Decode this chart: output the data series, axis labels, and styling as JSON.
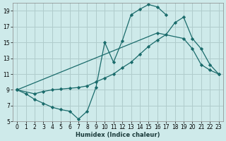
{
  "xlabel": "Humidex (Indice chaleur)",
  "background_color": "#ceeaea",
  "grid_color": "#b0cccc",
  "line_color": "#1a6b6b",
  "xlim": [
    -0.5,
    23.5
  ],
  "ylim": [
    5,
    20
  ],
  "yticks": [
    5,
    7,
    9,
    11,
    13,
    15,
    17,
    19
  ],
  "xticks": [
    0,
    1,
    2,
    3,
    4,
    5,
    6,
    7,
    8,
    9,
    10,
    11,
    12,
    13,
    14,
    15,
    16,
    17,
    18,
    19,
    20,
    21,
    22,
    23
  ],
  "line1_x": [
    0,
    1,
    2,
    3,
    4,
    5,
    6,
    7,
    8,
    9,
    10,
    11,
    12,
    13,
    14,
    15,
    16,
    17
  ],
  "line1_y": [
    9,
    8.5,
    7.8,
    7.3,
    6.8,
    6.5,
    6.3,
    5.3,
    6.3,
    9.3,
    15.0,
    12.5,
    15.2,
    18.5,
    19.2,
    19.8,
    19.5,
    18.5
  ],
  "line2_x": [
    0,
    2,
    3,
    4,
    5,
    6,
    7,
    8,
    9,
    10,
    11,
    12,
    13,
    14,
    15,
    16,
    17,
    18,
    19,
    20,
    21,
    22,
    23
  ],
  "line2_y": [
    9,
    8.5,
    8.8,
    9.0,
    9.1,
    9.2,
    9.3,
    9.5,
    10.0,
    10.5,
    11.0,
    11.8,
    12.5,
    13.5,
    14.5,
    15.3,
    16.0,
    17.5,
    18.2,
    15.5,
    14.2,
    12.2,
    11.0
  ],
  "line3_x": [
    0,
    16,
    19,
    20,
    21,
    22,
    23
  ],
  "line3_y": [
    9,
    16.2,
    15.5,
    14.2,
    12.2,
    11.5,
    11.0
  ]
}
